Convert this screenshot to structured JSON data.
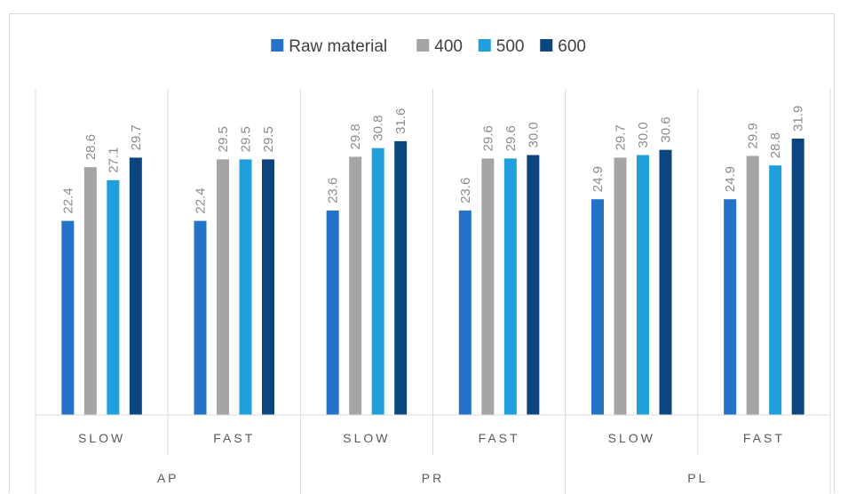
{
  "chart_data": {
    "type": "bar",
    "groups": [
      {
        "name": "AP",
        "categories": [
          "SLOW",
          "FAST"
        ]
      },
      {
        "name": "PR",
        "categories": [
          "SLOW",
          "FAST"
        ]
      },
      {
        "name": "PL",
        "categories": [
          "SLOW",
          "FAST"
        ]
      }
    ],
    "series": [
      {
        "name": "Raw material",
        "color": "#2473c9",
        "values": [
          22.4,
          22.4,
          23.6,
          23.6,
          24.9,
          24.9
        ],
        "labels": [
          "22.4",
          "22.4",
          "23.6",
          "23.6",
          "24.9",
          "24.9"
        ]
      },
      {
        "name": "400",
        "color": "#a5a5a5",
        "values": [
          28.6,
          29.5,
          29.8,
          29.6,
          29.7,
          29.9
        ],
        "labels": [
          "28.6",
          "29.5",
          "29.8",
          "29.6",
          "29.7",
          "29.9"
        ]
      },
      {
        "name": "500",
        "color": "#1fa0dc",
        "values": [
          27.1,
          29.5,
          30.8,
          29.6,
          30.0,
          28.8
        ],
        "labels": [
          "27.1",
          "29.5",
          "30.8",
          "29.6",
          "30.0",
          "28.8"
        ]
      },
      {
        "name": "600",
        "color": "#0d467f",
        "values": [
          29.7,
          29.5,
          31.6,
          30.0,
          30.6,
          31.9
        ],
        "labels": [
          "29.7",
          "29.5",
          "31.6",
          "30.0",
          "30.6",
          "31.9"
        ]
      }
    ],
    "ylim": [
      0,
      35
    ],
    "legend_position": "top",
    "grid": false
  }
}
